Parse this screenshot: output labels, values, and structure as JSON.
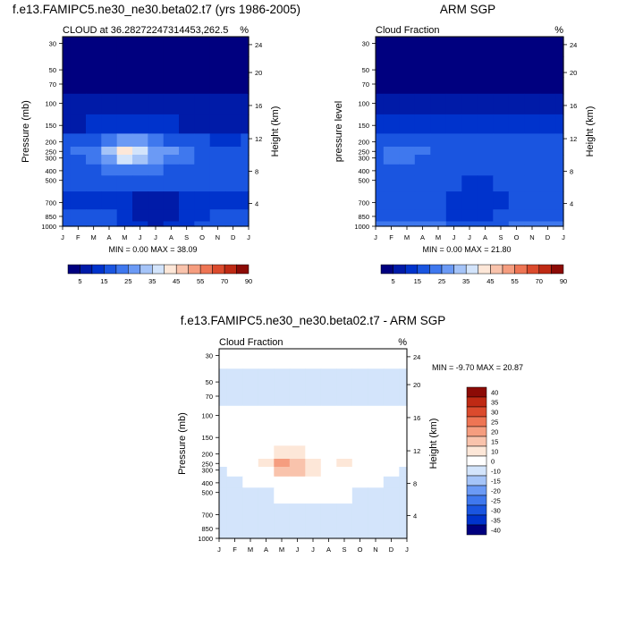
{
  "chart_data": [
    {
      "type": "heatmap",
      "title": "f.e13.FAMIPC5.ne30_ne30.beta02.t7 (yrs 1986-2005)",
      "subtitle_left": "CLOUD at 36.28272247314453,262.5",
      "subtitle_right": "%",
      "ylabel": "Pressure (mb)",
      "y2label": "Height (km)",
      "x": [
        "J",
        "F",
        "M",
        "A",
        "M",
        "J",
        "J",
        "A",
        "S",
        "O",
        "N",
        "D",
        "J"
      ],
      "y_ticks": [
        30,
        50,
        70,
        100,
        150,
        200,
        250,
        300,
        400,
        500,
        700,
        850,
        1000
      ],
      "y2_ticks": [
        24,
        20,
        16,
        12,
        8,
        4
      ],
      "stats": "MIN =  0.00 MAX = 38.09",
      "colorbar_labels": [
        "5",
        "15",
        "25",
        "35",
        "45",
        "55",
        "70",
        "90"
      ],
      "values": [
        [
          1,
          1,
          1,
          1,
          1,
          1,
          1,
          1,
          1,
          1,
          1,
          1,
          1
        ],
        [
          1,
          1,
          1,
          1,
          1,
          1,
          1,
          1,
          1,
          1,
          1,
          1,
          1
        ],
        [
          1,
          1,
          1,
          1,
          1,
          1,
          1,
          1,
          1,
          1,
          1,
          1,
          1
        ],
        [
          2,
          2,
          2,
          2,
          2,
          2,
          2,
          2,
          2,
          2,
          2,
          2,
          2
        ],
        [
          4,
          4,
          5,
          6,
          7,
          7,
          6,
          5,
          4,
          3,
          3,
          3,
          4
        ],
        [
          10,
          11,
          14,
          18,
          24,
          22,
          18,
          14,
          12,
          10,
          9,
          9,
          10
        ],
        [
          14,
          15,
          18,
          25,
          35,
          30,
          24,
          20,
          16,
          14,
          13,
          13,
          14
        ],
        [
          13,
          14,
          16,
          22,
          30,
          27,
          22,
          18,
          15,
          13,
          12,
          12,
          13
        ],
        [
          12,
          12,
          13,
          15,
          18,
          17,
          16,
          14,
          13,
          12,
          11,
          11,
          12
        ],
        [
          10,
          10,
          11,
          12,
          12,
          11,
          11,
          11,
          10,
          10,
          10,
          10,
          10
        ],
        [
          9,
          9,
          9,
          9,
          6,
          3,
          2,
          3,
          6,
          8,
          9,
          9,
          9
        ],
        [
          11,
          11,
          11,
          10,
          8,
          3,
          2,
          3,
          7,
          9,
          10,
          11,
          11
        ],
        [
          12,
          12,
          12,
          11,
          9,
          5,
          3,
          5,
          8,
          10,
          11,
          12,
          12
        ]
      ]
    },
    {
      "type": "heatmap",
      "title": "ARM SGP",
      "subtitle_left": "Cloud Fraction",
      "subtitle_right": "%",
      "ylabel": "pressure level",
      "y2label": "Height (km)",
      "x": [
        "J",
        "F",
        "M",
        "A",
        "M",
        "J",
        "J",
        "A",
        "S",
        "O",
        "N",
        "D",
        "J"
      ],
      "y_ticks": [
        30,
        50,
        70,
        100,
        150,
        200,
        250,
        300,
        400,
        500,
        700,
        850,
        1000
      ],
      "y2_ticks": [
        24,
        20,
        16,
        12,
        8,
        4
      ],
      "stats": "MIN =  0.00 MAX = 21.80",
      "colorbar_labels": [
        "5",
        "15",
        "25",
        "35",
        "45",
        "55",
        "70",
        "90"
      ],
      "values": [
        [
          1,
          1,
          1,
          1,
          1,
          1,
          1,
          1,
          1,
          1,
          1,
          1,
          1
        ],
        [
          1,
          1,
          1,
          1,
          1,
          1,
          1,
          1,
          1,
          1,
          1,
          1,
          1
        ],
        [
          1,
          1,
          1,
          1,
          1,
          1,
          1,
          1,
          1,
          1,
          1,
          1,
          1
        ],
        [
          2,
          2,
          2,
          2,
          2,
          2,
          2,
          2,
          2,
          2,
          2,
          2,
          2
        ],
        [
          6,
          6,
          7,
          7,
          6,
          6,
          5,
          5,
          5,
          6,
          6,
          6,
          6
        ],
        [
          12,
          13,
          14,
          13,
          13,
          12,
          11,
          11,
          12,
          12,
          12,
          12,
          12
        ],
        [
          14,
          15,
          16,
          15,
          14,
          13,
          12,
          12,
          13,
          14,
          14,
          14,
          14
        ],
        [
          14,
          15,
          15,
          14,
          13,
          12,
          11,
          11,
          12,
          13,
          14,
          14,
          14
        ],
        [
          12,
          13,
          13,
          13,
          12,
          11,
          10,
          10,
          11,
          12,
          12,
          12,
          12
        ],
        [
          12,
          12,
          12,
          12,
          11,
          10,
          9,
          9,
          10,
          11,
          11,
          12,
          12
        ],
        [
          12,
          12,
          12,
          12,
          10,
          8,
          6,
          7,
          9,
          11,
          11,
          12,
          12
        ],
        [
          14,
          14,
          14,
          14,
          12,
          9,
          7,
          8,
          11,
          13,
          14,
          14,
          14
        ],
        [
          18,
          18,
          18,
          18,
          16,
          12,
          10,
          11,
          14,
          16,
          17,
          18,
          18
        ]
      ]
    },
    {
      "type": "heatmap",
      "title": "f.e13.FAMIPC5.ne30_ne30.beta02.t7 - ARM SGP",
      "subtitle_left": "Cloud Fraction",
      "subtitle_right": "%",
      "ylabel": "Pressure (mb)",
      "y2label": "Height (km)",
      "x": [
        "J",
        "F",
        "M",
        "A",
        "M",
        "J",
        "J",
        "A",
        "S",
        "O",
        "N",
        "D",
        "J"
      ],
      "y_ticks": [
        30,
        50,
        70,
        100,
        150,
        200,
        250,
        300,
        400,
        500,
        700,
        850,
        1000
      ],
      "y2_ticks": [
        24,
        20,
        16,
        12,
        8,
        4
      ],
      "stats": "MIN = -9.70 MAX = 20.87",
      "colorbar_labels": [
        "40",
        "35",
        "30",
        "25",
        "20",
        "15",
        "10",
        "0",
        "-10",
        "-15",
        "-20",
        "-25",
        "-30",
        "-35",
        "-40"
      ],
      "values": [
        [
          1,
          1,
          1,
          1,
          1,
          1,
          1,
          1,
          1,
          1,
          1,
          1,
          1
        ],
        [
          -1,
          -1,
          -1,
          -1,
          -1,
          -1,
          -1,
          -1,
          -1,
          -1,
          -1,
          -1,
          -1
        ],
        [
          -1,
          -1,
          -1,
          -1,
          -1,
          -1,
          -1,
          -1,
          -1,
          -1,
          -1,
          -1,
          -1
        ],
        [
          1,
          1,
          1,
          1,
          1,
          1,
          1,
          1,
          1,
          1,
          1,
          1,
          1
        ],
        [
          1,
          1,
          1,
          1,
          2,
          2,
          2,
          1,
          1,
          1,
          1,
          1,
          1
        ],
        [
          1,
          1,
          2,
          6,
          11,
          10,
          9,
          6,
          9,
          2,
          1,
          1,
          1
        ],
        [
          1,
          1,
          2,
          10,
          20,
          17,
          12,
          8,
          12,
          2,
          1,
          1,
          1
        ],
        [
          -1,
          1,
          1,
          7,
          16,
          15,
          11,
          7,
          3,
          1,
          1,
          1,
          -1
        ],
        [
          -1,
          -1,
          1,
          2,
          4,
          5,
          5,
          4,
          2,
          1,
          1,
          -1,
          -1
        ],
        [
          -1,
          -1,
          -1,
          -1,
          1,
          1,
          1,
          1,
          1,
          -1,
          -1,
          -1,
          -1
        ],
        [
          -1,
          -1,
          -1,
          -1,
          -1,
          -1,
          -1,
          -1,
          -1,
          -1,
          -1,
          -1,
          -1
        ],
        [
          -1,
          -1,
          -1,
          -1,
          -1,
          -1,
          -1,
          -1,
          -1,
          -1,
          -1,
          -1,
          -1
        ],
        [
          -1,
          -1,
          -1,
          -1,
          -1,
          -1,
          -1,
          -1,
          -1,
          -1,
          -1,
          -1,
          -1
        ]
      ]
    }
  ],
  "colors": {
    "abs_scale": [
      "#00007f",
      "#001ba8",
      "#0033cc",
      "#1a55e0",
      "#3f78ee",
      "#6b9af5",
      "#a5c4f8",
      "#d3e4fb",
      "#fde7d8",
      "#f9c3ac",
      "#f59d7f",
      "#ee7554",
      "#db4b2d",
      "#bf2a14",
      "#8c0b06"
    ],
    "diff_scale": [
      "#8c0b06",
      "#bf2a14",
      "#db4b2d",
      "#ee7554",
      "#f59d7f",
      "#f9c3ac",
      "#fde7d8",
      "#ffffff",
      "#d3e4fb",
      "#a5c4f8",
      "#6b9af5",
      "#3f78ee",
      "#1a55e0",
      "#0033cc",
      "#00007f"
    ]
  }
}
